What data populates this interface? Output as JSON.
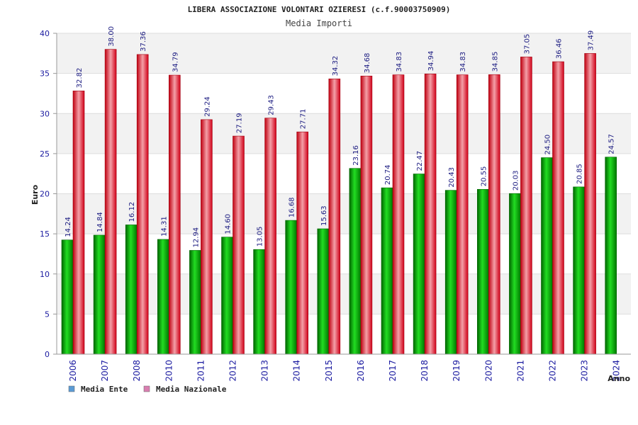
{
  "chart_data": {
    "type": "bar",
    "title": "LIBERA ASSOCIAZIONE VOLONTARI OZIERESI (c.f.90003750909)",
    "subtitle": "Media Importi",
    "xlabel": "Anno",
    "ylabel": "Euro",
    "ylim": [
      0,
      40
    ],
    "yticks": [
      "0",
      "5",
      "10",
      "15",
      "20",
      "25",
      "30",
      "35",
      "40"
    ],
    "categories": [
      "2006",
      "2007",
      "2008",
      "2010",
      "2011",
      "2012",
      "2013",
      "2014",
      "2015",
      "2016",
      "2017",
      "2018",
      "2019",
      "2020",
      "2021",
      "2022",
      "2023",
      "2024"
    ],
    "series": [
      {
        "name": "Media Ente",
        "color": "#00b000",
        "legend_color": "#5b9bd5",
        "values": [
          14.24,
          14.84,
          16.12,
          14.31,
          12.94,
          14.6,
          13.05,
          16.68,
          15.63,
          23.16,
          20.74,
          22.47,
          20.43,
          20.55,
          20.03,
          24.5,
          20.85,
          24.57
        ],
        "labels": [
          "14.24",
          "14.84",
          "16.12",
          "14.31",
          "12.94",
          "14.60",
          "13.05",
          "16.68",
          "15.63",
          "23.16",
          "20.74",
          "22.47",
          "20.43",
          "20.55",
          "20.03",
          "24.50",
          "20.85",
          "24.57"
        ]
      },
      {
        "name": "Media Nazionale",
        "color": "#e01020",
        "legend_color": "#d97fb0",
        "values": [
          32.82,
          38.0,
          37.36,
          34.79,
          29.24,
          27.19,
          29.43,
          27.71,
          34.32,
          34.68,
          34.83,
          34.94,
          34.83,
          34.85,
          37.05,
          36.46,
          37.49,
          null
        ],
        "labels": [
          "32.82",
          "38.00",
          "37.36",
          "34.79",
          "29.24",
          "27.19",
          "29.43",
          "27.71",
          "34.32",
          "34.68",
          "34.83",
          "34.94",
          "34.83",
          "34.85",
          "37.05",
          "36.46",
          "37.49",
          ""
        ]
      }
    ],
    "grid": true,
    "legend": "bottom-left"
  }
}
